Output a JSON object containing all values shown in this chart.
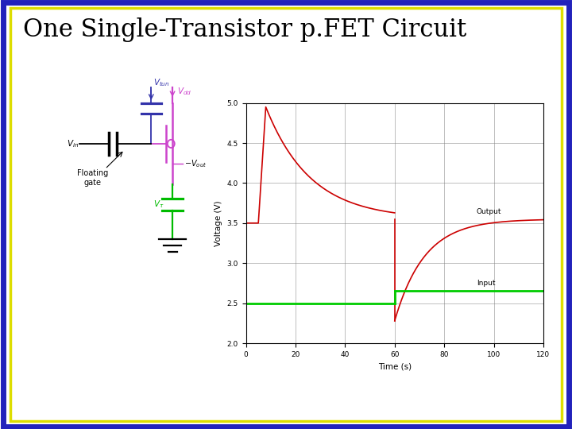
{
  "title": "One Single-Transistor p.FET Circuit",
  "title_fontsize": 22,
  "bg_color": "#ffffff",
  "border_outer_color": "#2222bb",
  "border_inner_color": "#dddd00",
  "plot_xlim": [
    0,
    120
  ],
  "plot_ylim": [
    2,
    5
  ],
  "plot_xticks": [
    0,
    20,
    40,
    60,
    80,
    100,
    120
  ],
  "plot_yticks": [
    2,
    2.5,
    3,
    3.5,
    4,
    4.5,
    5
  ],
  "xlabel": "Time (s)",
  "ylabel": "Voltage (V)",
  "output_label": "Output",
  "input_label": "Input",
  "output_color": "#cc0000",
  "input_color": "#00cc00",
  "pink": "#cc44cc",
  "green": "#00bb00",
  "blue_purple": "#3333aa",
  "black": "#000000"
}
